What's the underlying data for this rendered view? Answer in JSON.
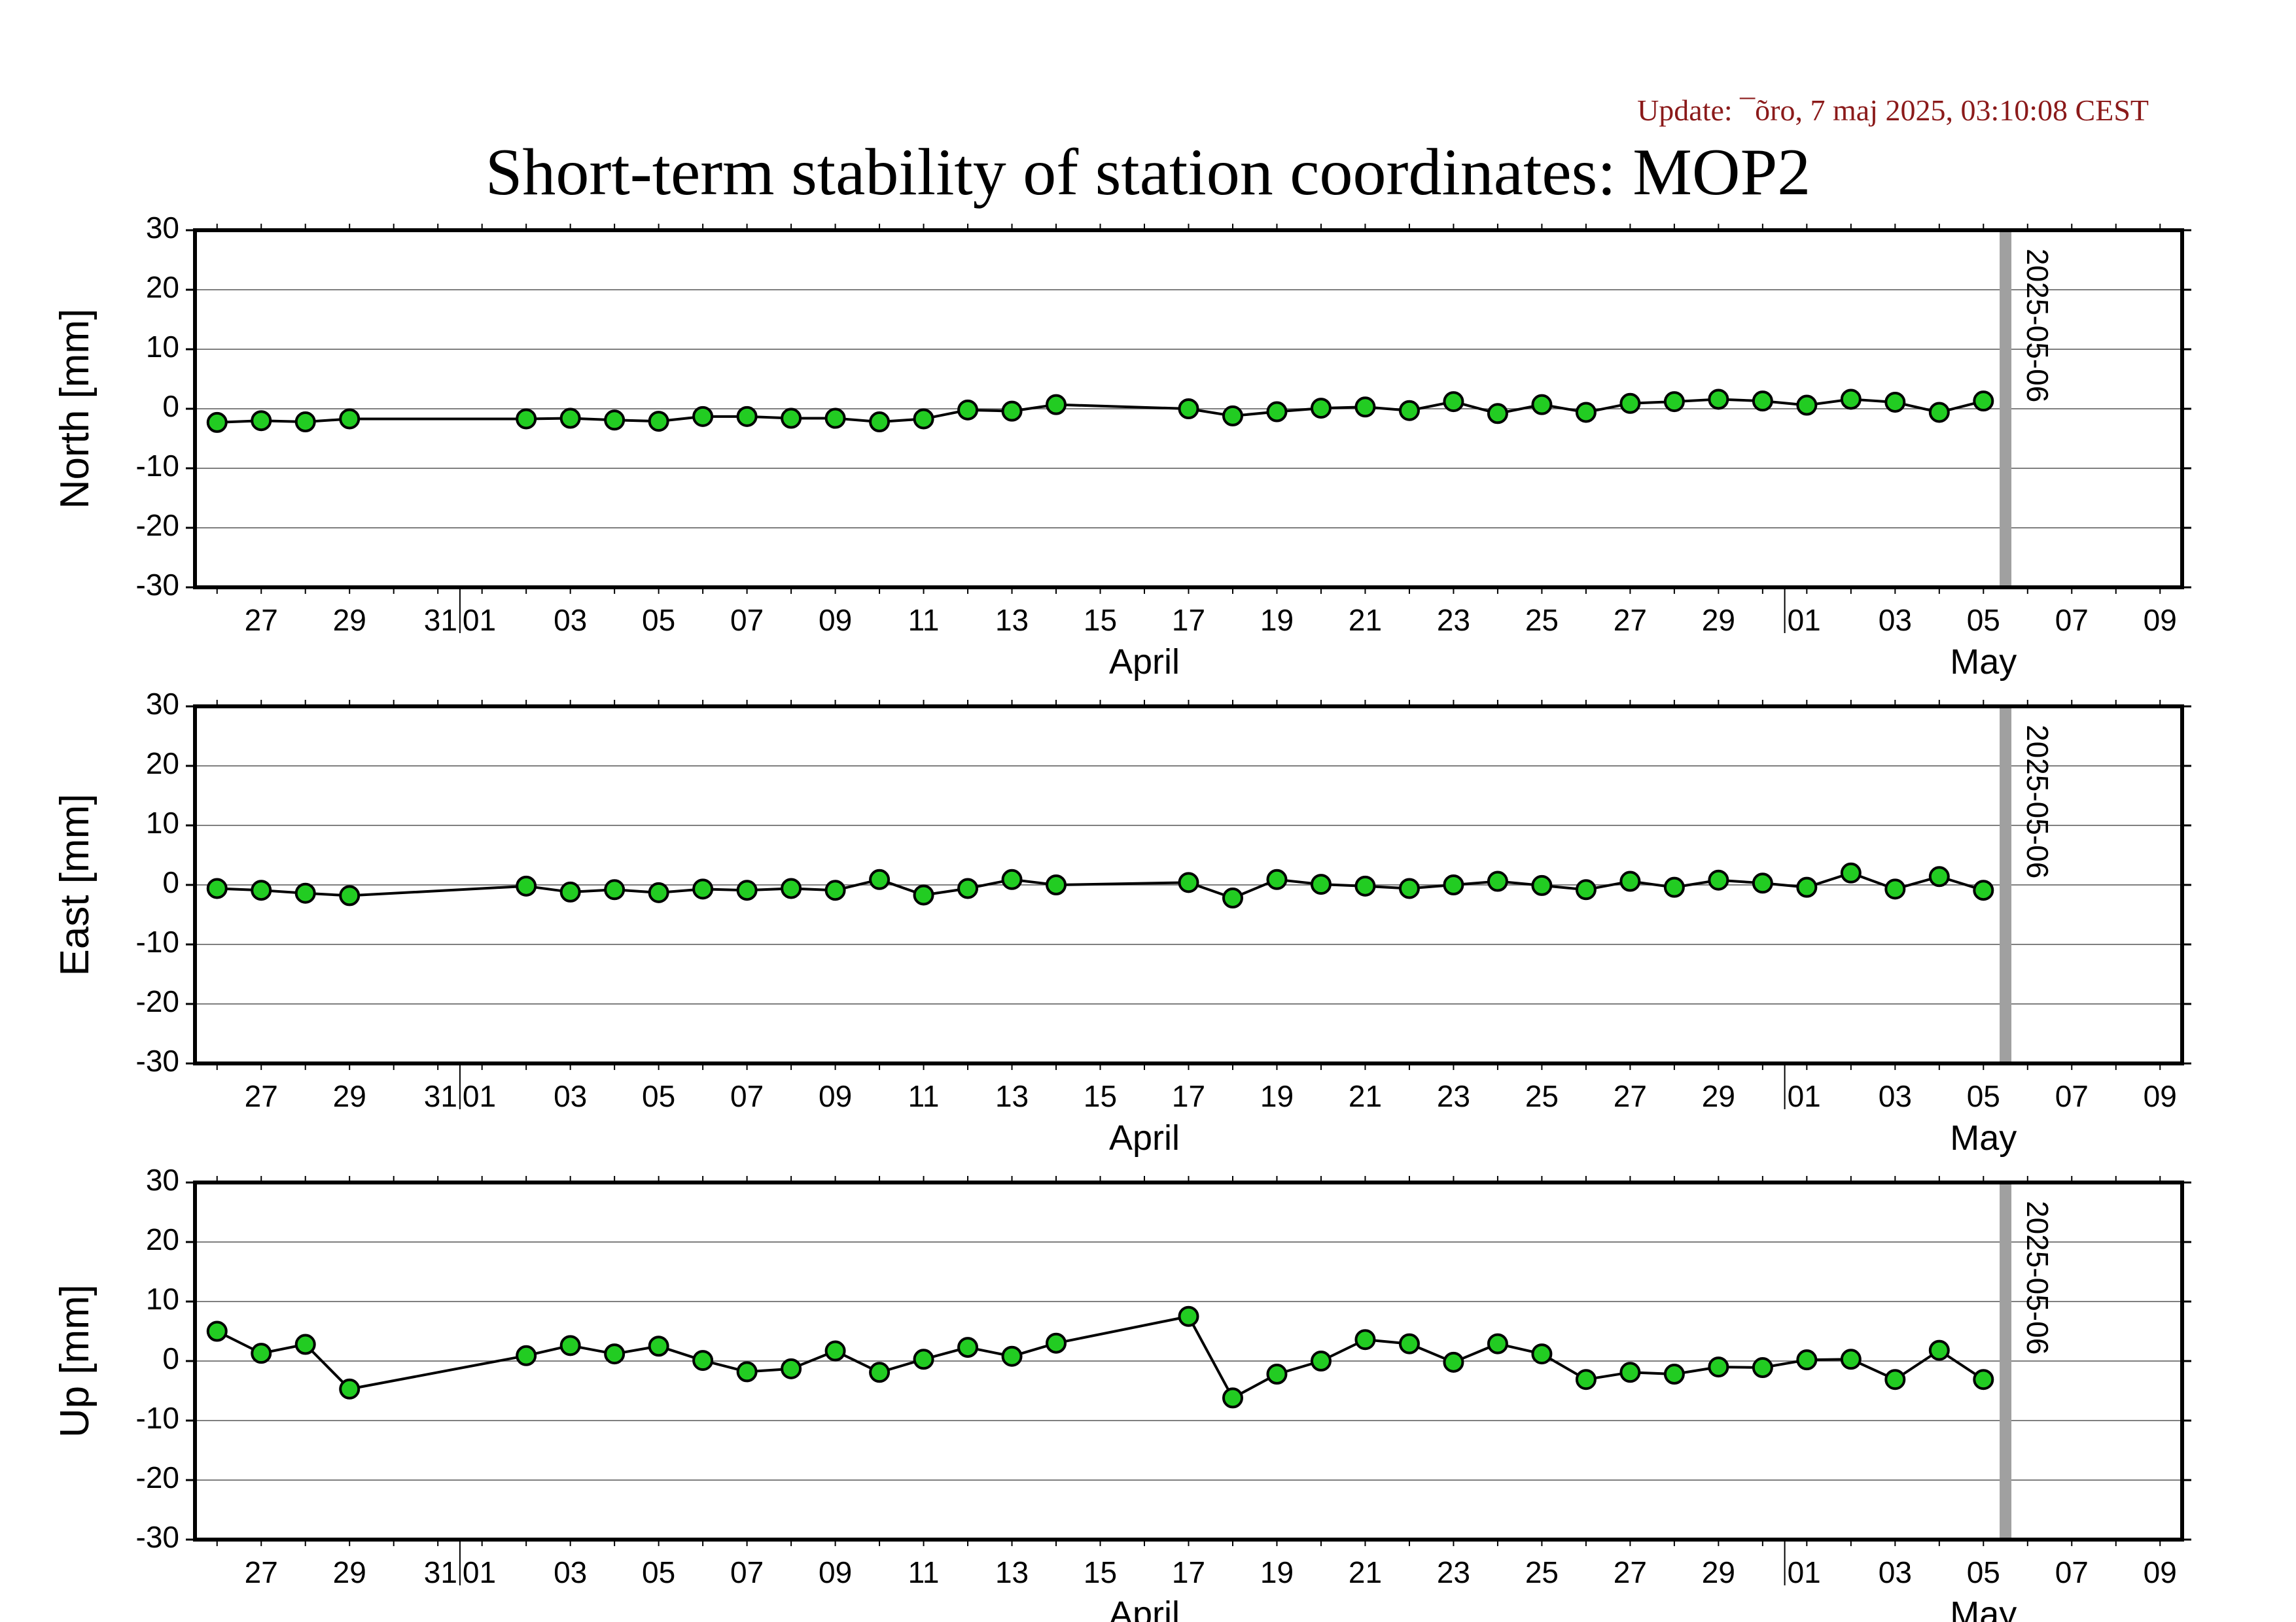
{
  "header": {
    "update": "Update: ¯õro, 7 maj 2025, 03:10:08 CEST",
    "title": "Short-term stability of station coordinates: MOP2"
  },
  "colors": {
    "marker_fill": "#22cc22",
    "marker_edge": "#000000",
    "line": "#000000",
    "grid": "#7f7f7f",
    "current_day_bar": "#a0a0a0"
  },
  "chart_data": [
    {
      "type": "line",
      "ylabel": "North [mm]",
      "ylim": [
        -30,
        30
      ],
      "yticks": [
        -30,
        -20,
        -10,
        0,
        10,
        20,
        30
      ],
      "grid": true,
      "xlim": [
        "2025-03-26",
        "2025-05-10"
      ],
      "x_tick_labels": [
        "27",
        "29",
        "31",
        "01",
        "03",
        "05",
        "07",
        "09",
        "11",
        "13",
        "15",
        "17",
        "19",
        "21",
        "23",
        "25",
        "27",
        "29",
        "01",
        "03",
        "05",
        "07",
        "09"
      ],
      "x_month_labels": [
        "April",
        "May"
      ],
      "marker_line_date": "2025-05-06",
      "marker_line_label": "2025-05-06",
      "x": [
        "2025-03-26",
        "2025-03-27",
        "2025-03-28",
        "2025-03-29",
        "2025-04-02",
        "2025-04-03",
        "2025-04-04",
        "2025-04-05",
        "2025-04-06",
        "2025-04-07",
        "2025-04-08",
        "2025-04-09",
        "2025-04-10",
        "2025-04-11",
        "2025-04-12",
        "2025-04-13",
        "2025-04-14",
        "2025-04-17",
        "2025-04-18",
        "2025-04-19",
        "2025-04-20",
        "2025-04-21",
        "2025-04-22",
        "2025-04-23",
        "2025-04-24",
        "2025-04-25",
        "2025-04-26",
        "2025-04-27",
        "2025-04-28",
        "2025-04-29",
        "2025-04-30",
        "2025-05-01",
        "2025-05-02",
        "2025-05-03",
        "2025-05-04",
        "2025-05-05"
      ],
      "y": [
        -2.3,
        -2.0,
        -2.2,
        -1.7,
        -1.7,
        -1.6,
        -1.9,
        -2.1,
        -1.3,
        -1.3,
        -1.6,
        -1.6,
        -2.2,
        -1.7,
        -0.2,
        -0.4,
        0.7,
        0.0,
        -1.2,
        -0.5,
        0.1,
        0.3,
        -0.3,
        1.2,
        -0.8,
        0.7,
        -0.6,
        0.9,
        1.2,
        1.6,
        1.3,
        0.6,
        1.6,
        1.1,
        -0.6,
        1.3
      ]
    },
    {
      "type": "line",
      "ylabel": "East [mm]",
      "ylim": [
        -30,
        30
      ],
      "yticks": [
        -30,
        -20,
        -10,
        0,
        10,
        20,
        30
      ],
      "grid": true,
      "xlim": [
        "2025-03-26",
        "2025-05-10"
      ],
      "x_tick_labels": [
        "27",
        "29",
        "31",
        "01",
        "03",
        "05",
        "07",
        "09",
        "11",
        "13",
        "15",
        "17",
        "19",
        "21",
        "23",
        "25",
        "27",
        "29",
        "01",
        "03",
        "05",
        "07",
        "09"
      ],
      "x_month_labels": [
        "April",
        "May"
      ],
      "marker_line_date": "2025-05-06",
      "marker_line_label": "2025-05-06",
      "x": [
        "2025-03-26",
        "2025-03-27",
        "2025-03-28",
        "2025-03-29",
        "2025-04-02",
        "2025-04-03",
        "2025-04-04",
        "2025-04-05",
        "2025-04-06",
        "2025-04-07",
        "2025-04-08",
        "2025-04-09",
        "2025-04-10",
        "2025-04-11",
        "2025-04-12",
        "2025-04-13",
        "2025-04-14",
        "2025-04-17",
        "2025-04-18",
        "2025-04-19",
        "2025-04-20",
        "2025-04-21",
        "2025-04-22",
        "2025-04-23",
        "2025-04-24",
        "2025-04-25",
        "2025-04-26",
        "2025-04-27",
        "2025-04-28",
        "2025-04-29",
        "2025-04-30",
        "2025-05-01",
        "2025-05-02",
        "2025-05-03",
        "2025-05-04",
        "2025-05-05"
      ],
      "y": [
        -0.6,
        -0.9,
        -1.4,
        -1.8,
        -0.2,
        -1.2,
        -0.8,
        -1.3,
        -0.7,
        -0.9,
        -0.6,
        -0.9,
        0.9,
        -1.7,
        -0.6,
        0.9,
        0.0,
        0.4,
        -2.2,
        0.9,
        0.1,
        -0.2,
        -0.6,
        0.0,
        0.6,
        -0.1,
        -0.8,
        0.6,
        -0.4,
        0.8,
        0.3,
        -0.4,
        2.0,
        -0.7,
        1.4,
        -0.9
      ]
    },
    {
      "type": "line",
      "ylabel": "Up [mm]",
      "ylim": [
        -30,
        30
      ],
      "yticks": [
        -30,
        -20,
        -10,
        0,
        10,
        20,
        30
      ],
      "grid": true,
      "xlim": [
        "2025-03-26",
        "2025-05-10"
      ],
      "x_tick_labels": [
        "27",
        "29",
        "31",
        "01",
        "03",
        "05",
        "07",
        "09",
        "11",
        "13",
        "15",
        "17",
        "19",
        "21",
        "23",
        "25",
        "27",
        "29",
        "01",
        "03",
        "05",
        "07",
        "09"
      ],
      "x_month_labels": [
        "April",
        "May"
      ],
      "marker_line_date": "2025-05-06",
      "marker_line_label": "2025-05-06",
      "x": [
        "2025-03-26",
        "2025-03-27",
        "2025-03-28",
        "2025-03-29",
        "2025-04-02",
        "2025-04-03",
        "2025-04-04",
        "2025-04-05",
        "2025-04-06",
        "2025-04-07",
        "2025-04-08",
        "2025-04-09",
        "2025-04-10",
        "2025-04-11",
        "2025-04-12",
        "2025-04-13",
        "2025-04-14",
        "2025-04-17",
        "2025-04-18",
        "2025-04-19",
        "2025-04-20",
        "2025-04-21",
        "2025-04-22",
        "2025-04-23",
        "2025-04-24",
        "2025-04-25",
        "2025-04-26",
        "2025-04-27",
        "2025-04-28",
        "2025-04-29",
        "2025-04-30",
        "2025-05-01",
        "2025-05-02",
        "2025-05-03",
        "2025-05-04",
        "2025-05-05"
      ],
      "y": [
        5.0,
        1.3,
        2.8,
        -4.7,
        0.9,
        2.6,
        1.2,
        2.5,
        0.1,
        -1.8,
        -1.3,
        1.7,
        -1.9,
        0.3,
        2.3,
        0.8,
        3.0,
        7.5,
        -6.2,
        -2.2,
        0.0,
        3.6,
        2.9,
        -0.2,
        2.9,
        1.2,
        -3.1,
        -1.9,
        -2.2,
        -1.0,
        -1.1,
        0.2,
        0.3,
        -3.1,
        1.8,
        -3.1
      ]
    }
  ]
}
